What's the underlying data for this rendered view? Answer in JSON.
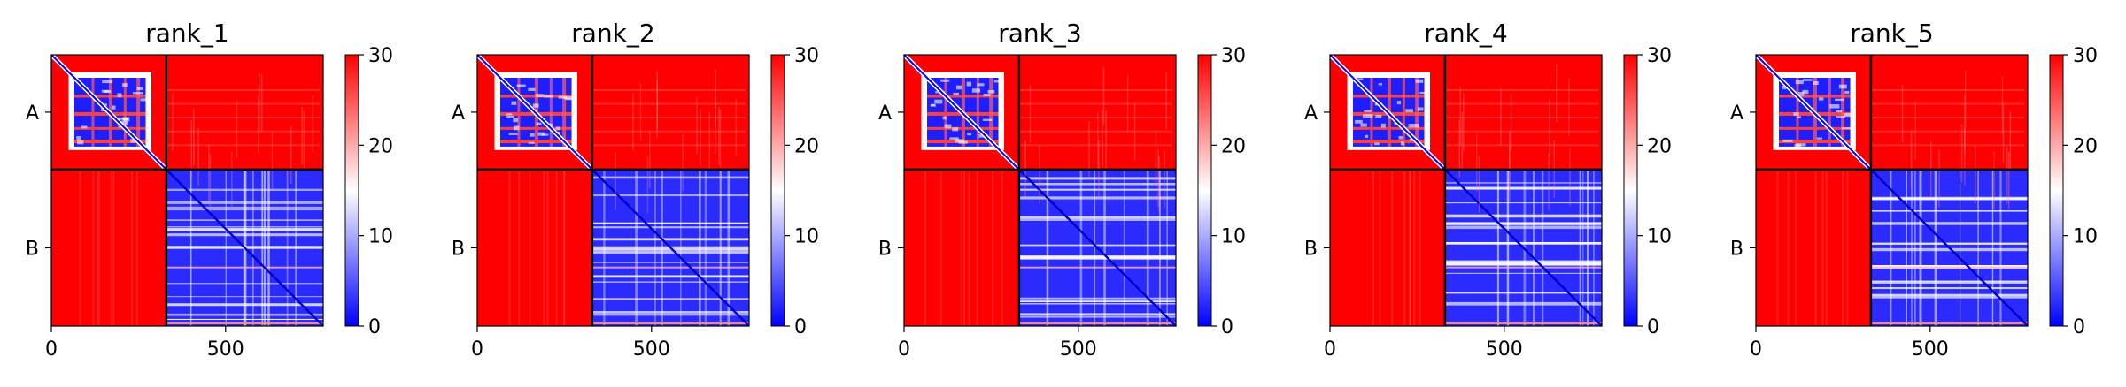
{
  "colors": {
    "low": "#0000ff",
    "mid": "#ffffff",
    "high": "#ff0000",
    "frame": "#000000"
  },
  "chart_data": [
    {
      "type": "heatmap",
      "title": "rank_1",
      "chains": [
        "A",
        "B"
      ],
      "chain_boundary": 330,
      "axis_length": 780,
      "xticks": [
        0,
        500
      ],
      "xtick_labels": [
        "0",
        "500"
      ],
      "ytick_labels": [
        "A",
        "B"
      ],
      "colorbar": {
        "min": 0,
        "max": 30,
        "ticks": [
          0,
          10,
          20,
          30
        ],
        "tick_labels": [
          "0",
          "10",
          "20",
          "30"
        ],
        "colormap": "bwr"
      }
    },
    {
      "type": "heatmap",
      "title": "rank_2",
      "chains": [
        "A",
        "B"
      ],
      "chain_boundary": 330,
      "axis_length": 780,
      "xticks": [
        0,
        500
      ],
      "xtick_labels": [
        "0",
        "500"
      ],
      "ytick_labels": [
        "A",
        "B"
      ],
      "colorbar": {
        "min": 0,
        "max": 30,
        "ticks": [
          0,
          10,
          20,
          30
        ],
        "tick_labels": [
          "0",
          "10",
          "20",
          "30"
        ],
        "colormap": "bwr"
      }
    },
    {
      "type": "heatmap",
      "title": "rank_3",
      "chains": [
        "A",
        "B"
      ],
      "chain_boundary": 330,
      "axis_length": 780,
      "xticks": [
        0,
        500
      ],
      "xtick_labels": [
        "0",
        "500"
      ],
      "ytick_labels": [
        "A",
        "B"
      ],
      "colorbar": {
        "min": 0,
        "max": 30,
        "ticks": [
          0,
          10,
          20,
          30
        ],
        "tick_labels": [
          "0",
          "10",
          "20",
          "30"
        ],
        "colormap": "bwr"
      }
    },
    {
      "type": "heatmap",
      "title": "rank_4",
      "chains": [
        "A",
        "B"
      ],
      "chain_boundary": 330,
      "axis_length": 780,
      "xticks": [
        0,
        500
      ],
      "xtick_labels": [
        "0",
        "500"
      ],
      "ytick_labels": [
        "A",
        "B"
      ],
      "colorbar": {
        "min": 0,
        "max": 30,
        "ticks": [
          0,
          10,
          20,
          30
        ],
        "tick_labels": [
          "0",
          "10",
          "20",
          "30"
        ],
        "colormap": "bwr"
      }
    },
    {
      "type": "heatmap",
      "title": "rank_5",
      "chains": [
        "A",
        "B"
      ],
      "chain_boundary": 330,
      "axis_length": 780,
      "xticks": [
        0,
        500
      ],
      "xtick_labels": [
        "0",
        "500"
      ],
      "ytick_labels": [
        "A",
        "B"
      ],
      "colorbar": {
        "min": 0,
        "max": 30,
        "ticks": [
          0,
          10,
          20,
          30
        ],
        "tick_labels": [
          "0",
          "10",
          "20",
          "30"
        ],
        "colormap": "bwr"
      }
    }
  ]
}
